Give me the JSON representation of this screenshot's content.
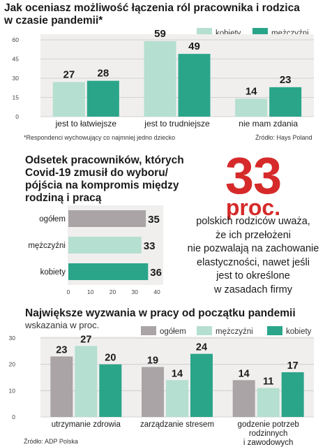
{
  "colors": {
    "kobiety": "#2aa58a",
    "mezczyzni": "#b5dfd0",
    "ogolem": "#aaa4a6",
    "accent": "#d62a2a",
    "panel": "#f0efee"
  },
  "section1": {
    "title_line1": "Jak oceniasz możliwość łączenia ról pracownika i rodzica",
    "title_line2": "w czasie pandemii*",
    "legend": [
      "kobiety",
      "mężczyźni"
    ],
    "footnote": "*Respondenci wychowujący co najmniej jedno dziecko",
    "source": "Źródło: Hays Poland"
  },
  "section2": {
    "title_lines": [
      "Odsetek pracowników, których",
      "Covid-19 zmusił do wyboru/",
      "pójścia na kompromis między",
      "rodziną i pracą"
    ]
  },
  "highlight": {
    "number": "33",
    "unit": "proc.",
    "text_lines": [
      "polskich rodziców uważa,",
      "że ich przełożeni",
      "nie pozwalają na zachowanie",
      "elastyczności, nawet jeśli",
      "jest to określone",
      "w zasadach firmy"
    ]
  },
  "section3": {
    "title": "Największe wyzwania w pracy od początku pandemii",
    "subtitle": "wskazania w proc.",
    "legend": [
      "ogółem",
      "mężczyźni",
      "kobiety"
    ],
    "source": "Źródło: ADP Polska"
  },
  "chart_data": [
    {
      "type": "bar",
      "categories": [
        "jest to łatwiejsze",
        "jest to trudniejsze",
        "nie mam zdania"
      ],
      "series": [
        {
          "name": "kobiety",
          "values": [
            27,
            59,
            14
          ]
        },
        {
          "name": "mężczyźni",
          "values": [
            28,
            49,
            23
          ]
        }
      ],
      "ylim": [
        0,
        60
      ],
      "yticks": [
        0,
        15,
        30,
        45,
        60
      ],
      "grid": true,
      "legend": "top-right"
    },
    {
      "type": "bar",
      "orientation": "horizontal",
      "categories": [
        "ogółem",
        "mężczyźni",
        "kobiety"
      ],
      "values": [
        35,
        33,
        36
      ],
      "xlim": [
        0,
        40
      ],
      "xticks": [
        0,
        10,
        20,
        30,
        40
      ],
      "grid": false
    },
    {
      "type": "bar",
      "categories": [
        "utrzymanie zdrowia",
        "zarządzanie stresem",
        "godzenie potrzeb rodzinnych i zawodowych"
      ],
      "series": [
        {
          "name": "ogółem",
          "values": [
            23,
            19,
            14
          ]
        },
        {
          "name": "mężczyźni",
          "values": [
            27,
            14,
            11
          ]
        },
        {
          "name": "kobiety",
          "values": [
            20,
            24,
            17
          ]
        }
      ],
      "ylim": [
        0,
        30
      ],
      "yticks": [
        0,
        10,
        20,
        30
      ],
      "grid": true,
      "legend": "top-right"
    }
  ]
}
